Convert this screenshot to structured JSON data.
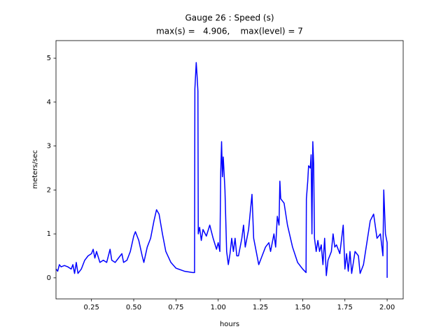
{
  "chart_data": {
    "type": "line",
    "title": "Gauge 26 : Speed (s)",
    "subtitle": "max(s) =   4.906,    max(level) = 7",
    "xlabel": "hours",
    "ylabel": "meters/sec",
    "xlim": [
      0.04,
      2.095
    ],
    "ylim": [
      -0.48,
      5.4
    ],
    "xticks": [
      0.25,
      {
        "value": 0.5,
        "label": "0.50"
      },
      0.75,
      {
        "value": 1,
        "label": "1.00"
      },
      1.25,
      {
        "value": 1.5,
        "label": "1.50"
      },
      1.75,
      {
        "value": 2,
        "label": "2.00"
      }
    ],
    "yticks": [
      0,
      1,
      2,
      3,
      4,
      5
    ],
    "grid": false,
    "x": [
      0.04,
      0.05,
      0.06,
      0.07,
      0.09,
      0.11,
      0.13,
      0.14,
      0.15,
      0.16,
      0.17,
      0.19,
      0.21,
      0.23,
      0.25,
      0.26,
      0.27,
      0.28,
      0.3,
      0.32,
      0.34,
      0.36,
      0.37,
      0.39,
      0.41,
      0.43,
      0.44,
      0.46,
      0.48,
      0.5,
      0.51,
      0.53,
      0.55,
      0.56,
      0.58,
      0.6,
      0.62,
      0.635,
      0.65,
      0.67,
      0.69,
      0.72,
      0.75,
      0.8,
      0.85,
      0.86,
      0.862,
      0.87,
      0.875,
      0.88,
      0.882,
      0.89,
      0.9,
      0.91,
      0.93,
      0.95,
      0.97,
      0.99,
      1.0,
      1.01,
      1.015,
      1.02,
      1.025,
      1.03,
      1.04,
      1.05,
      1.06,
      1.07,
      1.08,
      1.09,
      1.1,
      1.11,
      1.12,
      1.14,
      1.15,
      1.16,
      1.18,
      1.2,
      1.21,
      1.22,
      1.24,
      1.26,
      1.28,
      1.3,
      1.31,
      1.33,
      1.34,
      1.35,
      1.36,
      1.365,
      1.37,
      1.39,
      1.41,
      1.44,
      1.47,
      1.5,
      1.52,
      1.522,
      1.53,
      1.535,
      1.545,
      1.55,
      1.555,
      1.56,
      1.565,
      1.57,
      1.58,
      1.59,
      1.6,
      1.61,
      1.62,
      1.63,
      1.64,
      1.65,
      1.67,
      1.68,
      1.69,
      1.7,
      1.72,
      1.74,
      1.75,
      1.76,
      1.77,
      1.78,
      1.79,
      1.81,
      1.83,
      1.84,
      1.86,
      1.88,
      1.9,
      1.92,
      1.94,
      1.96,
      1.975,
      1.98,
      1.99,
      2.0,
      2.0
    ],
    "series": [
      {
        "name": "speed",
        "color": "#0000ff",
        "values": [
          0.2,
          0.15,
          0.3,
          0.25,
          0.28,
          0.25,
          0.2,
          0.3,
          0.1,
          0.35,
          0.1,
          0.2,
          0.4,
          0.5,
          0.55,
          0.65,
          0.45,
          0.6,
          0.35,
          0.4,
          0.35,
          0.65,
          0.4,
          0.35,
          0.45,
          0.55,
          0.35,
          0.4,
          0.6,
          0.95,
          1.05,
          0.85,
          0.5,
          0.35,
          0.7,
          0.9,
          1.3,
          1.55,
          1.45,
          1.0,
          0.6,
          0.35,
          0.22,
          0.15,
          0.12,
          0.12,
          4.3,
          4.9,
          4.6,
          4.25,
          1.0,
          1.15,
          0.85,
          1.1,
          0.95,
          1.2,
          0.9,
          0.65,
          0.8,
          0.6,
          2.4,
          3.1,
          2.3,
          2.75,
          2.0,
          0.6,
          0.3,
          0.55,
          0.9,
          0.6,
          0.9,
          0.5,
          0.5,
          0.9,
          1.2,
          0.7,
          1.1,
          1.9,
          0.9,
          0.7,
          0.3,
          0.5,
          0.7,
          0.8,
          0.6,
          1.0,
          0.7,
          1.4,
          1.2,
          2.2,
          1.8,
          1.7,
          1.2,
          0.7,
          0.35,
          0.2,
          0.12,
          1.8,
          2.2,
          2.55,
          2.5,
          2.8,
          1.0,
          3.1,
          2.6,
          0.9,
          0.6,
          0.85,
          0.6,
          0.75,
          0.3,
          0.9,
          0.05,
          0.4,
          0.6,
          1.0,
          0.7,
          0.75,
          0.55,
          1.2,
          0.2,
          0.55,
          0.15,
          0.6,
          0.1,
          0.6,
          0.5,
          0.1,
          0.3,
          0.8,
          1.3,
          1.45,
          0.9,
          1.0,
          0.5,
          2.0,
          1.0,
          0.8,
          0.0
        ]
      }
    ]
  }
}
